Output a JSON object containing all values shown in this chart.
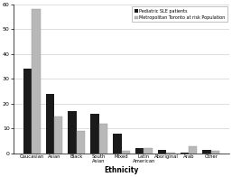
{
  "categories": [
    "Caucasian",
    "Asian",
    "Black",
    "South\nAsian",
    "Mixed",
    "Latin\nAmerican",
    "Aboriginal",
    "Arab",
    "Other"
  ],
  "pediatric_sle": [
    34,
    24,
    17,
    16,
    8,
    2,
    1.5,
    0.5,
    1.5
  ],
  "metro_toronto": [
    58,
    15,
    9,
    12,
    1,
    2,
    0.5,
    3,
    1
  ],
  "bar_color_sle": "#1a1a1a",
  "bar_color_metro": "#b8b8b8",
  "legend_labels": [
    "Pediatric SLE patients",
    "Metropolitan Toronto at risk Population"
  ],
  "xlabel": "Ethnicity",
  "ylim": [
    0,
    60
  ],
  "yticks": [
    0,
    10,
    20,
    30,
    40,
    50,
    60
  ],
  "grid_color": "#d0d0d0",
  "background_color": "#ffffff"
}
